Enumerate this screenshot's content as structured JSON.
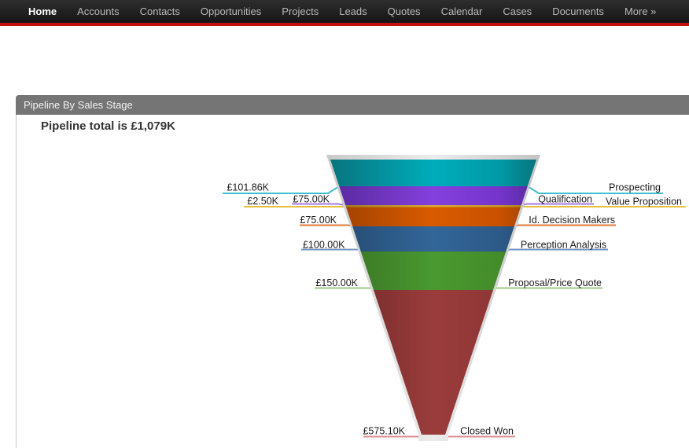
{
  "nav": {
    "items": [
      {
        "label": "Home",
        "active": true
      },
      {
        "label": "Accounts",
        "active": false
      },
      {
        "label": "Contacts",
        "active": false
      },
      {
        "label": "Opportunities",
        "active": false
      },
      {
        "label": "Projects",
        "active": false
      },
      {
        "label": "Leads",
        "active": false
      },
      {
        "label": "Quotes",
        "active": false
      },
      {
        "label": "Calendar",
        "active": false
      },
      {
        "label": "Cases",
        "active": false
      },
      {
        "label": "Documents",
        "active": false
      },
      {
        "label": "More »",
        "active": false
      }
    ]
  },
  "panel": {
    "header_title": "Pipeline By Sales Stage",
    "total_text": "Pipeline total is £1,079K"
  },
  "chart_data": {
    "type": "funnel",
    "title": "Pipeline total is £1,079K",
    "total_label": "£1,079K",
    "total_value_k": 1079,
    "currency": "£",
    "legend_position": "sides",
    "segments": [
      {
        "stage": "Prospecting",
        "value_label": "£101.86K",
        "value_k": 101.86,
        "color": "#009aa6",
        "color_light": "#00adbb",
        "color_dark": "#08747e",
        "line_color": "#3dbfcf"
      },
      {
        "stage": "Qualification",
        "value_label": "£75.00K",
        "value_k": 75.0,
        "color": "#7535cc",
        "color_light": "#8440dd",
        "color_dark": "#57299c",
        "line_color": "#a87ae0"
      },
      {
        "stage": "Value Proposition",
        "value_label": "£2.50K",
        "value_k": 2.5,
        "color": "#c39a2a",
        "color_light": "#d9ae32",
        "color_dark": "#96761c",
        "line_color": "#e6c23c"
      },
      {
        "stage": "Id. Decision Makers",
        "value_label": "£75.00K",
        "value_k": 75.0,
        "color": "#c95100",
        "color_light": "#d95b00",
        "color_dark": "#9c4000",
        "line_color": "#e0793a"
      },
      {
        "stage": "Perception Analysis",
        "value_label": "£100.00K",
        "value_k": 100.0,
        "color": "#2d5a88",
        "color_light": "#336699",
        "color_dark": "#24496e",
        "line_color": "#7193bd"
      },
      {
        "stage": "Proposal/Price Quote",
        "value_label": "£150.00K",
        "value_k": 150.0,
        "color": "#448c2a",
        "color_light": "#4a9930",
        "color_dark": "#376f22",
        "line_color": "#9cc784"
      },
      {
        "stage": "Closed Won",
        "value_label": "£575.10K",
        "value_k": 575.1,
        "color": "#8e3535",
        "color_light": "#9b3c3c",
        "color_dark": "#6b2727",
        "line_color": "#d89090"
      }
    ]
  }
}
